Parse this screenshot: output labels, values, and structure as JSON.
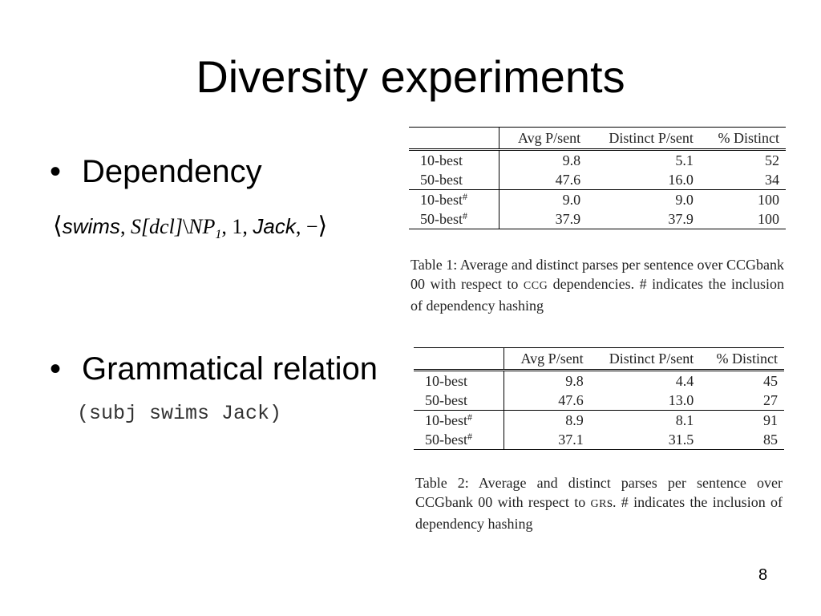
{
  "slide": {
    "title": "Diversity experiments",
    "page_number": "8"
  },
  "bullets": [
    {
      "marker": "•",
      "text": "Dependency"
    },
    {
      "marker": "•",
      "text": "Grammatical relation"
    }
  ],
  "dependency_example": {
    "open": "⟨",
    "word": "swims",
    "sep1": ",",
    "cat_s": "S",
    "cat_feature": "[dcl]",
    "cat_slash": "\\",
    "cat_np": "NP",
    "cat_np_sub": "1",
    "sep2": ",",
    "slot": "1",
    "sep3": ",",
    "arg": "Jack",
    "sep4": ",",
    "dash": "−",
    "close": "⟩"
  },
  "gr_example": "(subj swims Jack)",
  "tables": [
    {
      "headers": [
        "",
        "Avg P/sent",
        "Distinct P/sent",
        "% Distinct"
      ],
      "rows": [
        {
          "label": "10-best",
          "sup": "",
          "avg": "9.8",
          "distinct": "5.1",
          "pct": "52"
        },
        {
          "label": "50-best",
          "sup": "",
          "avg": "47.6",
          "distinct": "16.0",
          "pct": "34"
        },
        {
          "label": "10-best",
          "sup": "#",
          "avg": "9.0",
          "distinct": "9.0",
          "pct": "100"
        },
        {
          "label": "50-best",
          "sup": "#",
          "avg": "37.9",
          "distinct": "37.9",
          "pct": "100"
        }
      ],
      "caption_before": "Table 1:  Average and distinct parses per sentence over CCGbank 00 with respect to ",
      "caption_sc": "CCG",
      "caption_after": " dependencies.  # indicates the inclusion of dependency hashing"
    },
    {
      "headers": [
        "",
        "Avg P/sent",
        "Distinct P/sent",
        "% Distinct"
      ],
      "rows": [
        {
          "label": "10-best",
          "sup": "",
          "avg": "9.8",
          "distinct": "4.4",
          "pct": "45"
        },
        {
          "label": "50-best",
          "sup": "",
          "avg": "47.6",
          "distinct": "13.0",
          "pct": "27"
        },
        {
          "label": "10-best",
          "sup": "#",
          "avg": "8.9",
          "distinct": "8.1",
          "pct": "91"
        },
        {
          "label": "50-best",
          "sup": "#",
          "avg": "37.1",
          "distinct": "31.5",
          "pct": "85"
        }
      ],
      "caption_before": "Table 2:  Average and distinct parses per sentence over CCGbank 00 with respect to ",
      "caption_sc": "GR",
      "caption_after": "s.  # indicates the inclusion of dependency hashing"
    }
  ]
}
